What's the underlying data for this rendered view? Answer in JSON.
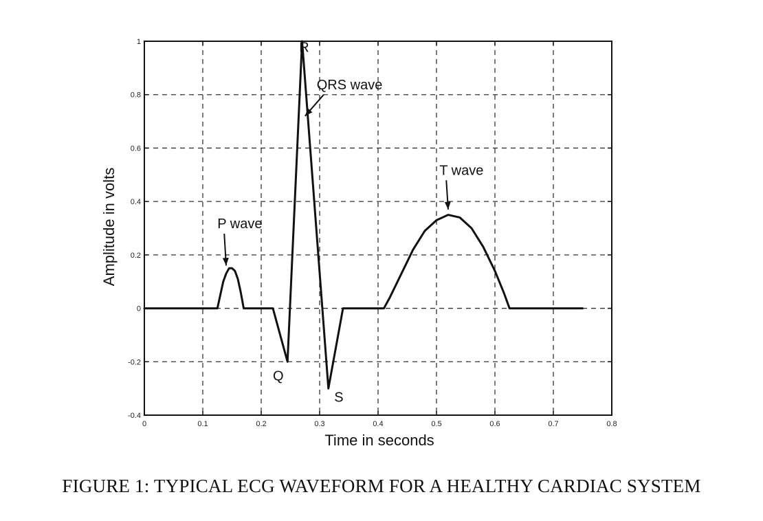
{
  "caption": "FIGURE 1: TYPICAL ECG WAVEFORM FOR A HEALTHY CARDIAC SYSTEM",
  "chart_data": {
    "type": "line",
    "title": "",
    "xlabel": "Time in seconds",
    "ylabel": "Amplitude in volts",
    "xlim": [
      0,
      0.8
    ],
    "ylim": [
      -0.4,
      1
    ],
    "xticks": [
      0,
      0.1,
      0.2,
      0.3,
      0.4,
      0.5,
      0.6,
      0.7,
      0.8
    ],
    "xtick_labels": [
      "0",
      "0.1",
      "0.2",
      "0.3",
      "0.4",
      "0.5",
      "0.6",
      "0.7",
      "0.8"
    ],
    "yticks": [
      -0.4,
      -0.2,
      0,
      0.2,
      0.4,
      0.6,
      0.8,
      1
    ],
    "ytick_labels": [
      "-0.4",
      "-0.2",
      "0",
      "0.2",
      "0.4",
      "0.6",
      "0.8",
      "1"
    ],
    "grid": true,
    "line_color": "#111111",
    "series": [
      {
        "x": [
          0.0,
          0.125,
          0.13,
          0.135,
          0.14,
          0.145,
          0.15,
          0.155,
          0.16,
          0.165,
          0.17,
          0.22,
          0.245,
          0.27,
          0.315,
          0.34,
          0.41,
          0.42,
          0.44,
          0.46,
          0.48,
          0.5,
          0.52,
          0.54,
          0.56,
          0.58,
          0.6,
          0.615,
          0.625,
          0.75
        ],
        "y": [
          0.0,
          0.0,
          0.05,
          0.1,
          0.13,
          0.15,
          0.15,
          0.14,
          0.11,
          0.06,
          0.0,
          0.0,
          -0.2,
          1.0,
          -0.3,
          0.0,
          0.0,
          0.04,
          0.13,
          0.22,
          0.29,
          0.33,
          0.35,
          0.34,
          0.3,
          0.23,
          0.14,
          0.06,
          0.0,
          0.0
        ]
      }
    ],
    "annotations": [
      {
        "label": "R",
        "x": 0.265,
        "y": 0.96
      },
      {
        "label": "QRS wave",
        "x": 0.295,
        "y": 0.82,
        "arrow_to": [
          0.275,
          0.72
        ]
      },
      {
        "label": "T wave",
        "x": 0.505,
        "y": 0.5,
        "arrow_to": [
          0.52,
          0.37
        ]
      },
      {
        "label": "P wave",
        "x": 0.125,
        "y": 0.3,
        "arrow_to": [
          0.14,
          0.16
        ]
      },
      {
        "label": "Q",
        "x": 0.22,
        "y": -0.27
      },
      {
        "label": "S",
        "x": 0.325,
        "y": -0.35
      }
    ]
  }
}
